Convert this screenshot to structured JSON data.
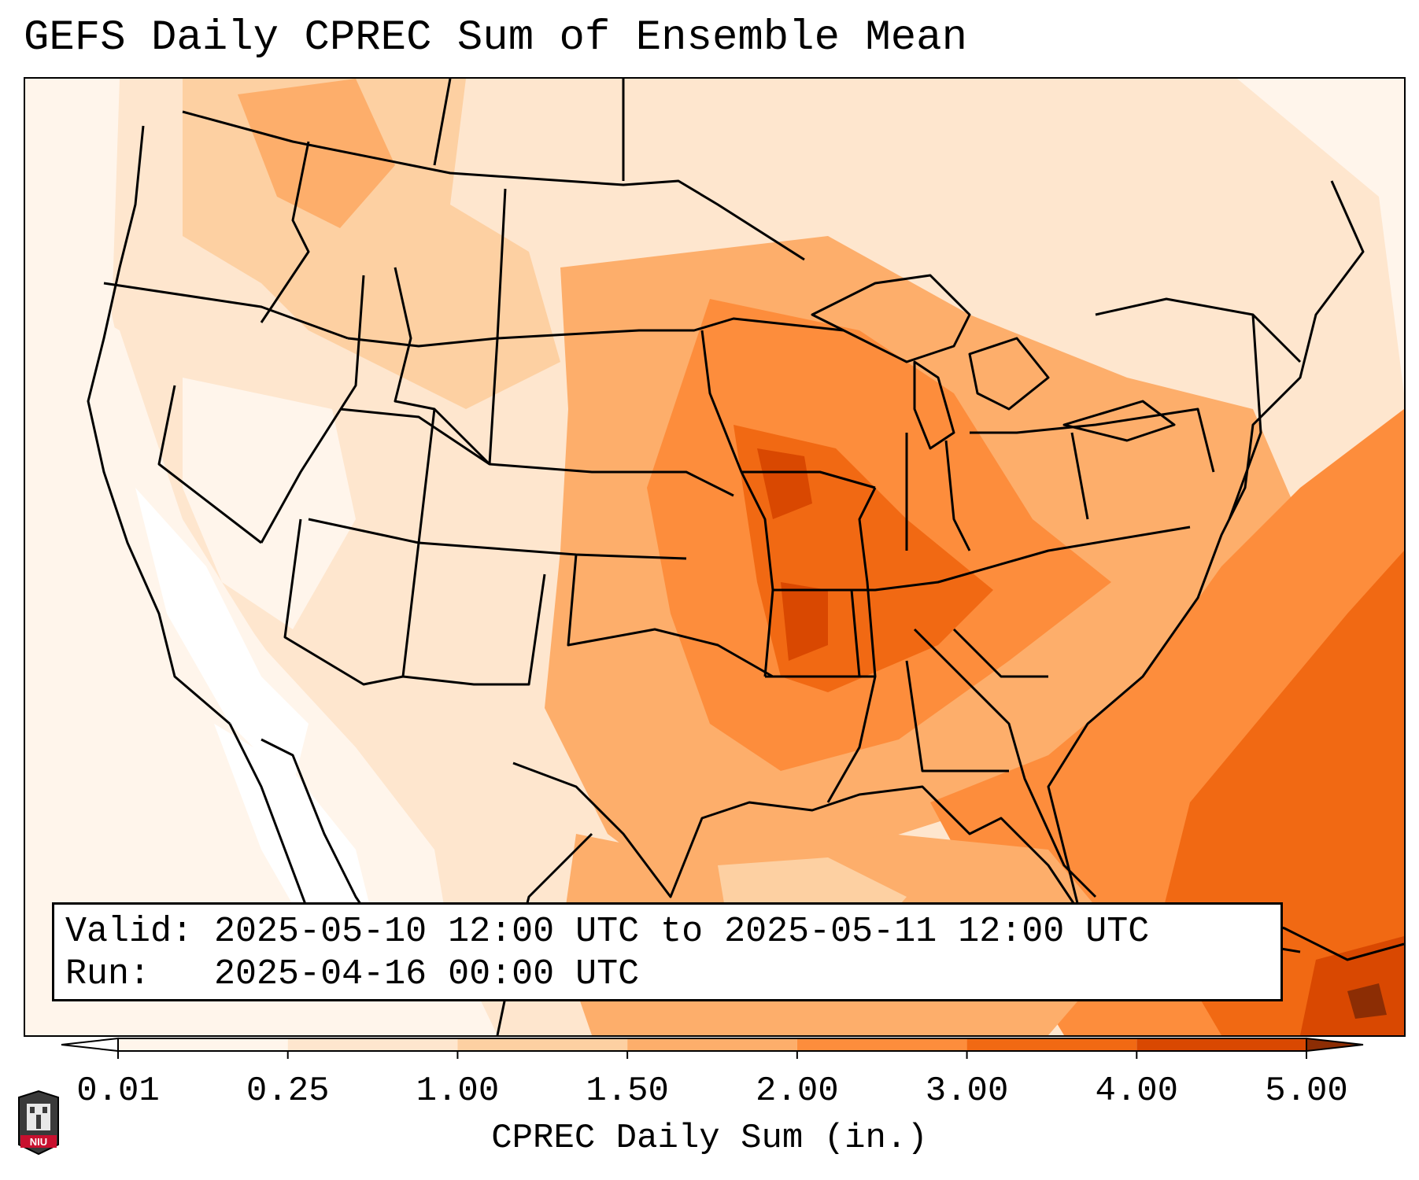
{
  "title": "GEFS Daily CPREC Sum of Ensemble Mean",
  "info": {
    "valid_label": "Valid:",
    "valid_value": "2025-05-10 12:00 UTC to 2025-05-11 12:00 UTC",
    "run_label": "Run:",
    "run_value": "2025-04-16 00:00 UTC"
  },
  "colorbar": {
    "label": "CPREC Daily Sum (in.)",
    "ticks": [
      "0.01",
      "0.25",
      "1.00",
      "1.50",
      "2.00",
      "3.00",
      "4.00",
      "5.00"
    ],
    "colors": [
      "#fff5eb",
      "#fee6ce",
      "#fdd0a2",
      "#fdae6b",
      "#fd8d3c",
      "#f16913",
      "#d94801",
      "#8c2d04"
    ]
  },
  "logo": {
    "text": "NIU"
  }
}
